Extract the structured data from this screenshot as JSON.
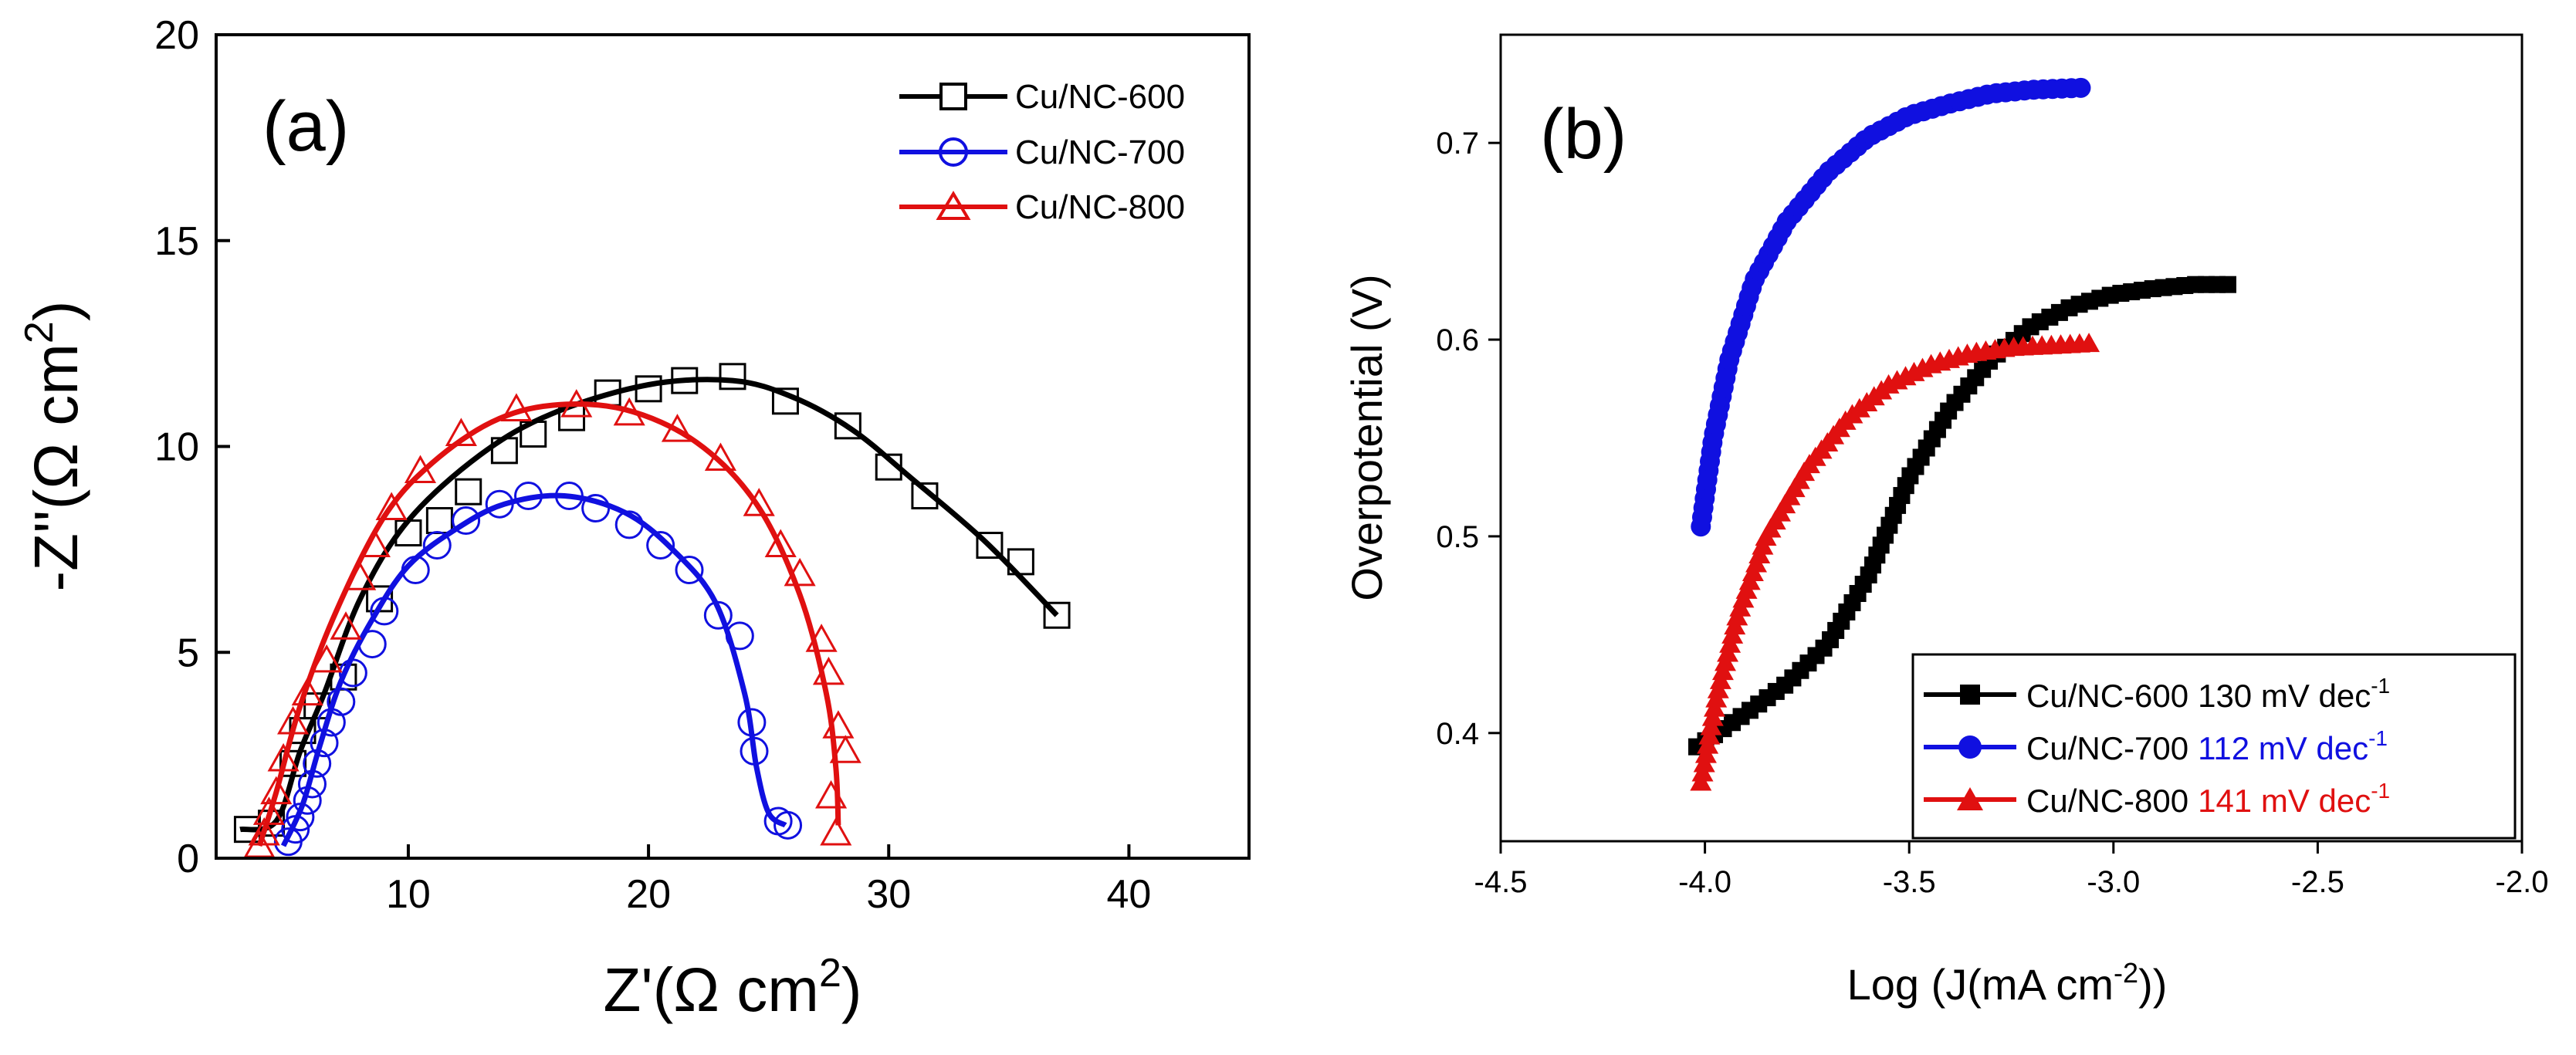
{
  "colors": {
    "cu600": "#000000",
    "cu700": "#1010e0",
    "cu800": "#e01010"
  },
  "chart_data": [
    {
      "type": "scatter",
      "panel_label": "(a)",
      "xlabel": "Z'(Ω cm",
      "xlabel_sup": "2",
      "xlabel_end": ")",
      "ylabel": "-Z''(Ω cm",
      "ylabel_sup": "2",
      "ylabel_end": ")",
      "xlim": [
        2,
        45
      ],
      "ylim": [
        0,
        20
      ],
      "xticks": [
        10,
        20,
        30,
        40
      ],
      "yticks": [
        0,
        5,
        10,
        15,
        20
      ],
      "legend_position": "top-right",
      "series": [
        {
          "name": "Cu/NC-600",
          "color_key": "cu600",
          "marker": "square-open",
          "fit": [
            [
              3,
              0.7
            ],
            [
              4.5,
              0.9
            ],
            [
              5.5,
              2.6
            ],
            [
              6.5,
              4.0
            ],
            [
              8,
              6.3
            ],
            [
              10,
              8.2
            ],
            [
              13,
              9.8
            ],
            [
              16,
              10.8
            ],
            [
              20,
              11.5
            ],
            [
              23.5,
              11.6
            ],
            [
              26,
              11.2
            ],
            [
              28.5,
              10.4
            ],
            [
              31,
              9.2
            ],
            [
              34,
              7.7
            ],
            [
              37,
              5.9
            ]
          ],
          "points": [
            [
              3.3,
              0.7
            ],
            [
              4.3,
              0.85
            ],
            [
              5.2,
              2.3
            ],
            [
              5.6,
              3.1
            ],
            [
              6.2,
              3.7
            ],
            [
              7.3,
              4.4
            ],
            [
              8.8,
              6.3
            ],
            [
              10.0,
              7.9
            ],
            [
              11.3,
              8.2
            ],
            [
              12.5,
              8.9
            ],
            [
              14.0,
              9.9
            ],
            [
              15.2,
              10.3
            ],
            [
              16.8,
              10.7
            ],
            [
              18.3,
              11.3
            ],
            [
              20.0,
              11.4
            ],
            [
              21.5,
              11.6
            ],
            [
              23.5,
              11.7
            ],
            [
              25.7,
              11.1
            ],
            [
              28.3,
              10.5
            ],
            [
              30.0,
              9.5
            ],
            [
              31.5,
              8.8
            ],
            [
              34.2,
              7.6
            ],
            [
              35.5,
              7.2
            ],
            [
              37.0,
              5.9
            ]
          ]
        },
        {
          "name": "Cu/NC-700",
          "color_key": "cu700",
          "marker": "circle-open",
          "fit": [
            [
              4.8,
              0.3
            ],
            [
              5.6,
              1.3
            ],
            [
              6.3,
              2.7
            ],
            [
              7.2,
              4.3
            ],
            [
              8.5,
              5.8
            ],
            [
              10,
              7.1
            ],
            [
              12,
              8.0
            ],
            [
              14,
              8.6
            ],
            [
              16.5,
              8.8
            ],
            [
              19,
              8.4
            ],
            [
              21,
              7.5
            ],
            [
              22.8,
              6.2
            ],
            [
              24,
              4.0
            ],
            [
              24.5,
              2.2
            ],
            [
              25,
              1.1
            ],
            [
              25.7,
              0.8
            ]
          ],
          "points": [
            [
              5.0,
              0.4
            ],
            [
              5.3,
              0.7
            ],
            [
              5.5,
              1.0
            ],
            [
              5.8,
              1.4
            ],
            [
              6.0,
              1.8
            ],
            [
              6.2,
              2.3
            ],
            [
              6.5,
              2.8
            ],
            [
              6.8,
              3.3
            ],
            [
              7.2,
              3.8
            ],
            [
              7.7,
              4.5
            ],
            [
              8.5,
              5.2
            ],
            [
              9.0,
              6.0
            ],
            [
              10.3,
              7.0
            ],
            [
              11.2,
              7.6
            ],
            [
              12.4,
              8.2
            ],
            [
              13.8,
              8.6
            ],
            [
              15.0,
              8.8
            ],
            [
              16.7,
              8.8
            ],
            [
              17.8,
              8.5
            ],
            [
              19.2,
              8.1
            ],
            [
              20.5,
              7.6
            ],
            [
              21.7,
              7.0
            ],
            [
              22.9,
              5.9
            ],
            [
              23.8,
              5.4
            ],
            [
              24.3,
              3.3
            ],
            [
              24.4,
              2.6
            ],
            [
              25.4,
              0.9
            ],
            [
              25.8,
              0.8
            ]
          ]
        },
        {
          "name": "Cu/NC-800",
          "color_key": "cu800",
          "marker": "triangle-open",
          "fit": [
            [
              3.8,
              0.3
            ],
            [
              4.5,
              1.6
            ],
            [
              5.5,
              3.7
            ],
            [
              7,
              6.0
            ],
            [
              9,
              8.3
            ],
            [
              11,
              9.6
            ],
            [
              13.5,
              10.6
            ],
            [
              16,
              11.0
            ],
            [
              19,
              10.9
            ],
            [
              22,
              10.1
            ],
            [
              24.5,
              8.6
            ],
            [
              26.3,
              6.4
            ],
            [
              27.4,
              4.0
            ],
            [
              27.8,
              2.2
            ],
            [
              27.9,
              0.8
            ]
          ],
          "points": [
            [
              3.8,
              0.3
            ],
            [
              4.0,
              0.6
            ],
            [
              4.2,
              1.1
            ],
            [
              4.5,
              1.6
            ],
            [
              4.8,
              2.4
            ],
            [
              5.2,
              3.3
            ],
            [
              5.8,
              4.0
            ],
            [
              6.6,
              4.8
            ],
            [
              7.4,
              5.6
            ],
            [
              8.0,
              6.8
            ],
            [
              8.6,
              7.6
            ],
            [
              9.3,
              8.5
            ],
            [
              10.5,
              9.4
            ],
            [
              12.2,
              10.3
            ],
            [
              14.5,
              10.9
            ],
            [
              17.0,
              11.0
            ],
            [
              19.2,
              10.8
            ],
            [
              21.2,
              10.4
            ],
            [
              23.0,
              9.7
            ],
            [
              24.6,
              8.6
            ],
            [
              25.5,
              7.6
            ],
            [
              26.3,
              6.9
            ],
            [
              27.2,
              5.3
            ],
            [
              27.5,
              4.5
            ],
            [
              27.9,
              3.2
            ],
            [
              28.2,
              2.6
            ],
            [
              27.6,
              1.5
            ],
            [
              27.8,
              0.6
            ]
          ]
        }
      ]
    },
    {
      "type": "line",
      "panel_label": "(b)",
      "xlabel": "Log (J(mA cm",
      "xlabel_sup": "-2",
      "xlabel_end": "))",
      "ylabel": "Overpotential (V)",
      "xlim": [
        -4.5,
        -2.0
      ],
      "ylim": [
        0.345,
        0.755
      ],
      "xticks": [
        -4.5,
        -4.0,
        -3.5,
        -3.0,
        -2.5,
        -2.0
      ],
      "xtick_labels": [
        "-4.5",
        "-4.0",
        "-3.5",
        "-3.0",
        "-2.5",
        "-2.0"
      ],
      "yticks": [
        0.4,
        0.5,
        0.6,
        0.7
      ],
      "ytick_labels": [
        "0.4",
        "0.5",
        "0.6",
        "0.7"
      ],
      "legend_position": "bottom-right",
      "series": [
        {
          "name": "Cu/NC-600",
          "slope": "130 mV dec",
          "slope_sup": "-1",
          "color_key": "cu600",
          "marker": "square-filled",
          "curve": [
            [
              -4.02,
              0.393
            ],
            [
              -3.9,
              0.41
            ],
            [
              -3.8,
              0.425
            ],
            [
              -3.7,
              0.445
            ],
            [
              -3.6,
              0.48
            ],
            [
              -3.5,
              0.53
            ],
            [
              -3.4,
              0.565
            ],
            [
              -3.3,
              0.59
            ],
            [
              -3.2,
              0.607
            ],
            [
              -3.1,
              0.617
            ],
            [
              -3.0,
              0.623
            ],
            [
              -2.9,
              0.626
            ],
            [
              -2.8,
              0.628
            ],
            [
              -2.72,
              0.628
            ]
          ]
        },
        {
          "name": "Cu/NC-700",
          "slope": "112 mV dec",
          "slope_sup": "-1",
          "color_key": "cu700",
          "marker": "circle-filled",
          "curve": [
            [
              -4.01,
              0.505
            ],
            [
              -3.98,
              0.55
            ],
            [
              -3.94,
              0.59
            ],
            [
              -3.88,
              0.63
            ],
            [
              -3.8,
              0.66
            ],
            [
              -3.7,
              0.685
            ],
            [
              -3.6,
              0.703
            ],
            [
              -3.5,
              0.714
            ],
            [
              -3.4,
              0.72
            ],
            [
              -3.3,
              0.725
            ],
            [
              -3.2,
              0.727
            ],
            [
              -3.08,
              0.728
            ]
          ]
        },
        {
          "name": "Cu/NC-800",
          "slope": "141 mV dec",
          "slope_sup": "-1",
          "color_key": "cu800",
          "marker": "triangle-filled",
          "curve": [
            [
              -4.01,
              0.375
            ],
            [
              -3.97,
              0.42
            ],
            [
              -3.92,
              0.46
            ],
            [
              -3.85,
              0.5
            ],
            [
              -3.75,
              0.535
            ],
            [
              -3.65,
              0.56
            ],
            [
              -3.55,
              0.577
            ],
            [
              -3.45,
              0.587
            ],
            [
              -3.35,
              0.593
            ],
            [
              -3.25,
              0.596
            ],
            [
              -3.15,
              0.597
            ],
            [
              -3.06,
              0.598
            ]
          ]
        }
      ]
    }
  ]
}
